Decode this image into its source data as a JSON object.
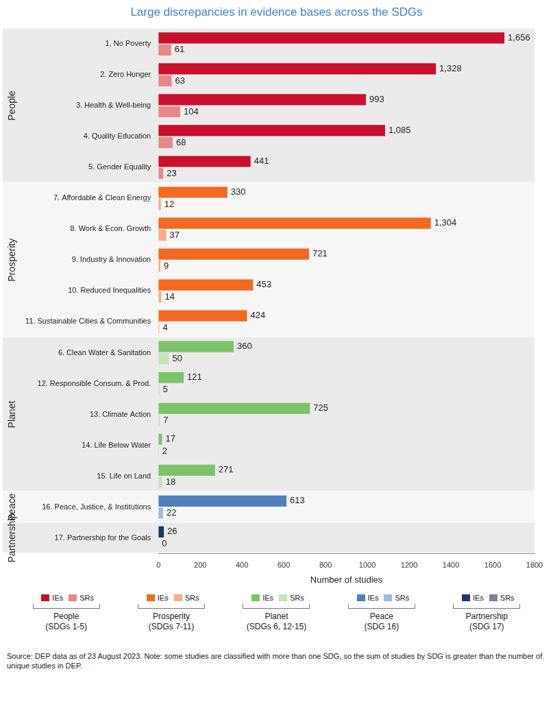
{
  "chart_data": {
    "type": "bar",
    "orientation": "horizontal",
    "title": "Large discrepancies in evidence bases across the SDGs",
    "x_label": "Number of studies",
    "note": "Source: DEP data as of 23 August 2023. Note: some studies are classified with more than one SDG, so the sum of studies by SDG is greater than the number of unique studies in DEP.",
    "categories": [
      "1. No Poverty",
      "2. Zero Hunger",
      "3. Health & Well-being",
      "4. Quality Education",
      "5. Gender Equality",
      "7. Affordable & Clean Energy",
      "8. Work & Econ. Growth",
      "9. Industry & Innovation",
      "10. Reduced Inequalities",
      "11. Sustainable Cities & Communities",
      "6. Clean Water & Sanitation",
      "12. Responsible Consum. & Prod.",
      "13. Climate Action",
      "14. Life Below Water",
      "15. Life on Land",
      "16. Peace, Justice, & Institutions",
      "17. Partnership for the Goals"
    ],
    "series": [
      {
        "name": "IEs",
        "values": [
          1656,
          1328,
          993,
          1085,
          441,
          330,
          1304,
          721,
          453,
          424,
          360,
          121,
          725,
          17,
          271,
          613,
          26
        ],
        "value_labels": [
          "1,656",
          "1,328",
          "993",
          "1,085",
          "441",
          "330",
          "1,304",
          "721",
          "453",
          "424",
          "360",
          "121",
          "725",
          "17",
          "271",
          "613",
          "26"
        ],
        "colors": [
          "#c8102e",
          "#c8102e",
          "#c8102e",
          "#c8102e",
          "#c8102e",
          "#f26a21",
          "#f26a21",
          "#f26a21",
          "#f26a21",
          "#f26a21",
          "#7cc36a",
          "#7cc36a",
          "#7cc36a",
          "#7cc36a",
          "#7cc36a",
          "#4f81bd",
          "#1f3864"
        ]
      },
      {
        "name": "SRs",
        "values": [
          61,
          63,
          104,
          68,
          23,
          12,
          37,
          9,
          14,
          4,
          50,
          5,
          7,
          2,
          18,
          22,
          0
        ],
        "colors": [
          "#e8878a",
          "#e8878a",
          "#e8878a",
          "#e8878a",
          "#e8878a",
          "#f8ad82",
          "#f8ad82",
          "#f8ad82",
          "#f8ad82",
          "#f8ad82",
          "#c4e4b6",
          "#c4e4b6",
          "#c4e4b6",
          "#c4e4b6",
          "#c4e4b6",
          "#9db9dd",
          "#7f7f9c"
        ]
      }
    ],
    "groups": [
      {
        "name": "People",
        "sublabel": "(SDGs 1-5)",
        "categories": [
          "1. No Poverty",
          "2. Zero Hunger",
          "3. Health & Well-being",
          "4. Quality Education",
          "5. Gender Equality"
        ]
      },
      {
        "name": "Prosperity",
        "sublabel": "(SDGs 7-11)",
        "categories": [
          "7. Affordable & Clean Energy",
          "8. Work & Econ. Growth",
          "9. Industry & Innovation",
          "10. Reduced Inequalities",
          "11. Sustainable Cities & Communities"
        ]
      },
      {
        "name": "Planet",
        "sublabel": "(SDGs 6, 12-15)",
        "categories": [
          "6. Clean Water & Sanitation",
          "12. Responsible Consum. & Prod.",
          "13. Climate Action",
          "14. Life Below Water",
          "15. Life on Land"
        ]
      },
      {
        "name": "Peace",
        "sublabel": "(SDG 16)",
        "categories": [
          "16. Peace, Justice, & Institutions"
        ]
      },
      {
        "name": "Partnership",
        "sublabel": "(SDG 17)",
        "categories": [
          "17. Partnership for the Goals"
        ]
      }
    ],
    "xlim": [
      0,
      1800
    ],
    "xticks": [
      0,
      200,
      400,
      600,
      800,
      1000,
      1200,
      1400,
      1600,
      1800
    ],
    "grid": false,
    "data_labels": true
  }
}
